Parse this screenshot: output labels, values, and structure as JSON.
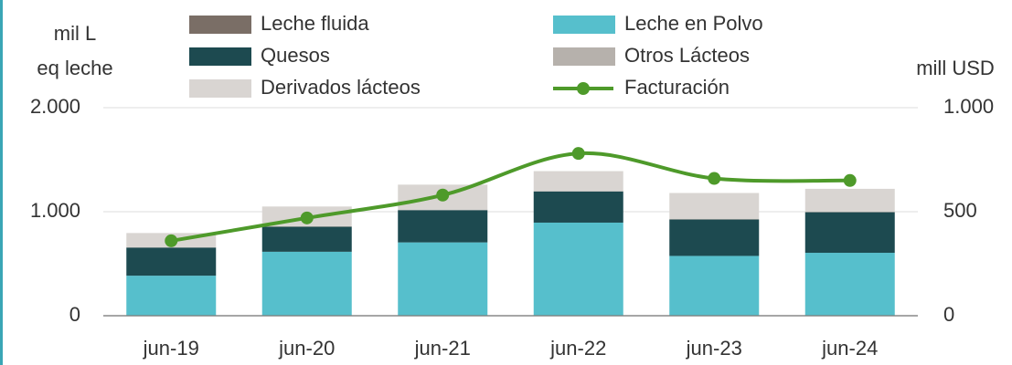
{
  "chart_data": {
    "type": "bar_line",
    "y_label": [
      "mil L",
      "eq leche"
    ],
    "y2_label": "mill USD",
    "categories": [
      "jun-19",
      "jun-20",
      "jun-21",
      "jun-22",
      "jun-23",
      "jun-24"
    ],
    "series": [
      {
        "name": "Leche fluida",
        "color": "#7a6e66",
        "values": [
          5,
          5,
          5,
          5,
          5,
          5
        ]
      },
      {
        "name": "Leche en Polvo",
        "color": "#56bfcc",
        "values": [
          380,
          610,
          700,
          890,
          570,
          600
        ]
      },
      {
        "name": "Quesos",
        "color": "#1d4a50",
        "values": [
          270,
          240,
          310,
          300,
          350,
          390
        ]
      },
      {
        "name": "Otros Lácteos",
        "color": "#b6b1ac",
        "values": [
          5,
          5,
          5,
          5,
          5,
          5
        ]
      },
      {
        "name": "Derivados lácteos",
        "color": "#d9d5d2",
        "values": [
          135,
          190,
          240,
          190,
          250,
          220
        ]
      },
      {
        "name": "Facturación",
        "color": "#4e9a2a",
        "axis": "y2",
        "type": "line",
        "values": [
          360,
          470,
          580,
          780,
          660,
          650
        ]
      }
    ],
    "ylim": [
      0,
      2000
    ],
    "yticks": [
      0,
      {
        "value": 1000,
        "label": "1.000"
      },
      {
        "value": 2000,
        "label": "2.000"
      }
    ],
    "y2lim": [
      0,
      1000
    ],
    "y2ticks": [
      0,
      500,
      {
        "value": 1000,
        "label": "1.000"
      }
    ]
  }
}
